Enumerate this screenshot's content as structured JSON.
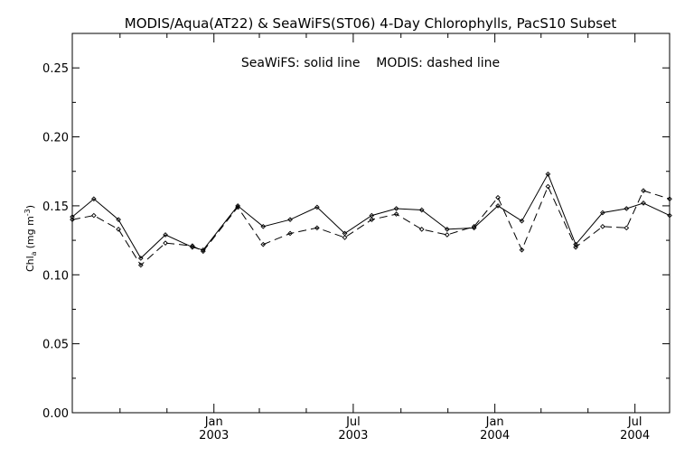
{
  "chart_data": {
    "type": "line",
    "title": "MODIS/Aqua(AT22) & SeaWiFS(ST06) 4-Day Chlorophylls, PacS10 Subset",
    "annotation": "SeaWiFS: solid line    MODIS: dashed line",
    "ylabel_main": "Chl",
    "ylabel_sub": "a",
    "ylabel_unit_open": "(mg m",
    "ylabel_unit_exp": "-3",
    "ylabel_unit_close": ")",
    "ylim": [
      0,
      0.275
    ],
    "xlim": [
      "2002-07-01",
      "2004-08-15"
    ],
    "yticks": [
      {
        "value": 0.0,
        "label": "0.00"
      },
      {
        "value": 0.05,
        "label": "0.05"
      },
      {
        "value": 0.1,
        "label": "0.10"
      },
      {
        "value": 0.15,
        "label": "0.15"
      },
      {
        "value": 0.2,
        "label": "0.20"
      },
      {
        "value": 0.25,
        "label": "0.25"
      }
    ],
    "xticks_major": [
      {
        "date": "2003-01-01",
        "month": "Jan",
        "year": "2003"
      },
      {
        "date": "2003-07-01",
        "month": "Jul",
        "year": "2003"
      },
      {
        "date": "2004-01-01",
        "month": "Jan",
        "year": "2004"
      },
      {
        "date": "2004-07-01",
        "month": "Jul",
        "year": "2004"
      }
    ],
    "xticks_minor": [
      "2002-09-01",
      "2002-11-01",
      "2003-03-01",
      "2003-05-01",
      "2003-09-01",
      "2003-11-01",
      "2004-03-01",
      "2004-05-01"
    ],
    "grid": false,
    "series": [
      {
        "name": "SeaWiFS",
        "style": "solid",
        "color": "#000000",
        "points": [
          {
            "x": "2002-07-01",
            "y": 0.142
          },
          {
            "x": "2002-07-29",
            "y": 0.155
          },
          {
            "x": "2002-08-30",
            "y": 0.14
          },
          {
            "x": "2002-09-28",
            "y": 0.112
          },
          {
            "x": "2002-10-30",
            "y": 0.129
          },
          {
            "x": "2002-12-04",
            "y": 0.12
          },
          {
            "x": "2002-12-18",
            "y": 0.118
          },
          {
            "x": "2003-02-01",
            "y": 0.15
          },
          {
            "x": "2003-03-06",
            "y": 0.135
          },
          {
            "x": "2003-04-10",
            "y": 0.14
          },
          {
            "x": "2003-05-15",
            "y": 0.149
          },
          {
            "x": "2003-06-20",
            "y": 0.13
          },
          {
            "x": "2003-07-25",
            "y": 0.143
          },
          {
            "x": "2003-08-26",
            "y": 0.148
          },
          {
            "x": "2003-09-28",
            "y": 0.147
          },
          {
            "x": "2003-10-31",
            "y": 0.133
          },
          {
            "x": "2003-12-05",
            "y": 0.134
          },
          {
            "x": "2004-01-05",
            "y": 0.15
          },
          {
            "x": "2004-02-05",
            "y": 0.139
          },
          {
            "x": "2004-03-10",
            "y": 0.173
          },
          {
            "x": "2004-04-15",
            "y": 0.122
          },
          {
            "x": "2004-05-20",
            "y": 0.145
          },
          {
            "x": "2004-06-20",
            "y": 0.148
          },
          {
            "x": "2004-07-12",
            "y": 0.152
          },
          {
            "x": "2004-08-15",
            "y": 0.143
          }
        ]
      },
      {
        "name": "MODIS",
        "style": "dashed",
        "color": "#000000",
        "points": [
          {
            "x": "2002-07-01",
            "y": 0.14
          },
          {
            "x": "2002-07-29",
            "y": 0.143
          },
          {
            "x": "2002-08-30",
            "y": 0.133
          },
          {
            "x": "2002-09-28",
            "y": 0.107
          },
          {
            "x": "2002-10-30",
            "y": 0.123
          },
          {
            "x": "2002-12-04",
            "y": 0.121
          },
          {
            "x": "2002-12-18",
            "y": 0.117
          },
          {
            "x": "2003-02-01",
            "y": 0.149
          },
          {
            "x": "2003-03-06",
            "y": 0.122
          },
          {
            "x": "2003-04-10",
            "y": 0.13
          },
          {
            "x": "2003-05-15",
            "y": 0.134
          },
          {
            "x": "2003-06-20",
            "y": 0.127
          },
          {
            "x": "2003-07-25",
            "y": 0.14
          },
          {
            "x": "2003-08-26",
            "y": 0.144
          },
          {
            "x": "2003-09-28",
            "y": 0.133
          },
          {
            "x": "2003-10-31",
            "y": 0.129
          },
          {
            "x": "2003-12-05",
            "y": 0.135
          },
          {
            "x": "2004-01-05",
            "y": 0.156
          },
          {
            "x": "2004-02-05",
            "y": 0.118
          },
          {
            "x": "2004-03-10",
            "y": 0.164
          },
          {
            "x": "2004-04-15",
            "y": 0.12
          },
          {
            "x": "2004-05-20",
            "y": 0.135
          },
          {
            "x": "2004-06-20",
            "y": 0.134
          },
          {
            "x": "2004-07-12",
            "y": 0.161
          },
          {
            "x": "2004-08-15",
            "y": 0.155
          }
        ]
      }
    ]
  }
}
